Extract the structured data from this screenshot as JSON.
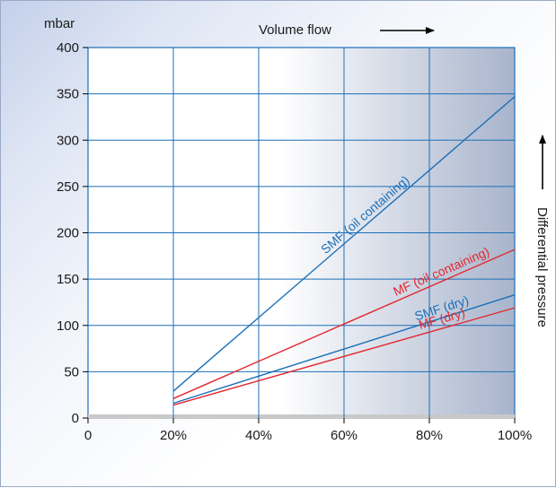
{
  "chart_data": {
    "type": "line",
    "title": "",
    "xlabel": "Volume flow",
    "ylabel": "Differential pressure",
    "y_unit": "mbar",
    "x_unit": "%",
    "xlim": [
      0,
      100
    ],
    "ylim": [
      0,
      400
    ],
    "x_ticks": [
      0,
      20,
      40,
      60,
      80,
      100
    ],
    "x_tick_labels": [
      "0",
      "20%",
      "40%",
      "60%",
      "80%",
      "100%"
    ],
    "y_ticks": [
      0,
      50,
      100,
      150,
      200,
      250,
      300,
      350,
      400
    ],
    "y_tick_labels": [
      "0",
      "50",
      "100",
      "150",
      "200",
      "250",
      "300",
      "350",
      "400"
    ],
    "grid": true,
    "legend": "none (series labelled inline along lines)",
    "series": [
      {
        "name": "SMF (oil containing)",
        "color": "#1b6fb8",
        "x": [
          20,
          100
        ],
        "y": [
          29,
          347
        ]
      },
      {
        "name": "MF (oil containing)",
        "color": "#e3282f",
        "x": [
          20,
          100
        ],
        "y": [
          21,
          182
        ]
      },
      {
        "name": "SMF (dry)",
        "color": "#1b6fb8",
        "x": [
          20,
          100
        ],
        "y": [
          16,
          133
        ]
      },
      {
        "name": "MF (dry)",
        "color": "#e3282f",
        "x": [
          20,
          100
        ],
        "y": [
          14,
          119
        ]
      }
    ]
  }
}
